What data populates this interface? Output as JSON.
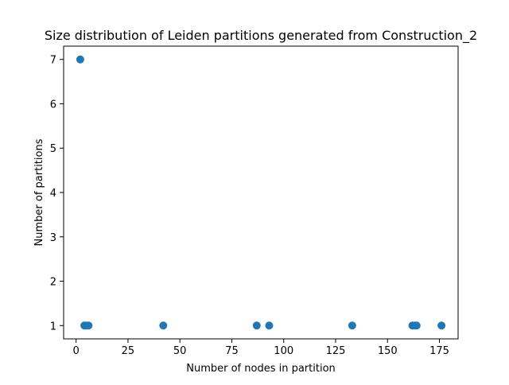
{
  "chart_data": {
    "type": "scatter",
    "title": "Size distribution of Leiden partitions generated from Construction_2",
    "xlabel": "Number of nodes in partition",
    "ylabel": "Number of partitions",
    "xlim": [
      -6,
      184
    ],
    "ylim": [
      0.7,
      7.3
    ],
    "xticks": [
      0,
      25,
      50,
      75,
      100,
      125,
      150,
      175
    ],
    "yticks": [
      1,
      2,
      3,
      4,
      5,
      6,
      7
    ],
    "grid": false,
    "marker_color": "#1f77b4",
    "points": [
      {
        "x": 2,
        "y": 7
      },
      {
        "x": 4,
        "y": 1
      },
      {
        "x": 5,
        "y": 1
      },
      {
        "x": 6,
        "y": 1
      },
      {
        "x": 42,
        "y": 1
      },
      {
        "x": 87,
        "y": 1
      },
      {
        "x": 93,
        "y": 1
      },
      {
        "x": 133,
        "y": 1
      },
      {
        "x": 162,
        "y": 1
      },
      {
        "x": 163,
        "y": 1
      },
      {
        "x": 164,
        "y": 1
      },
      {
        "x": 176,
        "y": 1
      }
    ]
  }
}
